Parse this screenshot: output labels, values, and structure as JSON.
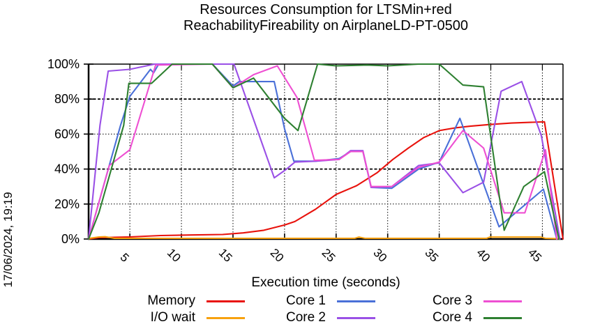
{
  "timestamp": "17/06/2024, 19:19",
  "chart_data": {
    "type": "line",
    "title": "Resources Consumption for LTSMin+red ReachabilityFireability on AirplaneLD-PT-0500",
    "title_lines": [
      "Resources Consumption for LTSMin+red",
      "ReachabilityFireability on AirplaneLD-PT-0500"
    ],
    "xlabel": "Execution time (seconds)",
    "ylabel": "",
    "xlim": [
      1,
      47
    ],
    "ylim": [
      0,
      100
    ],
    "x_ticks": [
      5,
      10,
      15,
      20,
      25,
      30,
      35,
      40,
      45
    ],
    "y_ticks": [
      0,
      20,
      40,
      60,
      80,
      100
    ],
    "y_tick_labels": [
      "0%",
      "20%",
      "40%",
      "60%",
      "80%",
      "100%"
    ],
    "grid": true,
    "legend_position": "bottom",
    "axis_color": "#000000",
    "series": [
      {
        "name": "Memory",
        "color": "#e8120c",
        "points": [
          [
            1,
            0
          ],
          [
            2,
            0.8
          ],
          [
            5,
            1.2
          ],
          [
            8,
            2
          ],
          [
            11,
            2.3
          ],
          [
            14,
            2.6
          ],
          [
            16,
            3.5
          ],
          [
            18,
            5
          ],
          [
            20,
            8
          ],
          [
            21,
            10
          ],
          [
            23,
            17
          ],
          [
            25,
            25.5
          ],
          [
            27,
            30.5
          ],
          [
            29,
            38
          ],
          [
            30.5,
            45.5
          ],
          [
            32,
            52
          ],
          [
            33.5,
            58
          ],
          [
            35,
            62
          ],
          [
            36.5,
            63.5
          ],
          [
            38,
            64.5
          ],
          [
            40,
            65.5
          ],
          [
            42,
            66.3
          ],
          [
            45.2,
            67
          ],
          [
            47,
            0
          ]
        ]
      },
      {
        "name": "I/O wait",
        "color": "#f7a10e",
        "points": [
          [
            1,
            0.3
          ],
          [
            2,
            1.2
          ],
          [
            2.6,
            1.3
          ],
          [
            3.5,
            0.4
          ],
          [
            26.8,
            0.4
          ],
          [
            27.2,
            1.1
          ],
          [
            27.8,
            0.4
          ],
          [
            39.6,
            0.4
          ],
          [
            39.9,
            1.1
          ],
          [
            44.8,
            1.1
          ],
          [
            45.3,
            0.4
          ],
          [
            46.5,
            0.2
          ]
        ]
      },
      {
        "name": "Core 1",
        "color": "#4a70d8",
        "points": [
          [
            1,
            0
          ],
          [
            4.1,
            65
          ],
          [
            5,
            81.5
          ],
          [
            7,
            97
          ],
          [
            7.3,
            95
          ],
          [
            7.8,
            100
          ],
          [
            13,
            100
          ],
          [
            15,
            87.5
          ],
          [
            15.6,
            90
          ],
          [
            19,
            90
          ],
          [
            20,
            63
          ],
          [
            20.9,
            44.5
          ],
          [
            23,
            44.5
          ],
          [
            25.3,
            46
          ],
          [
            26.4,
            50
          ],
          [
            27.6,
            50
          ],
          [
            28.4,
            29.5
          ],
          [
            30.4,
            29
          ],
          [
            33,
            40
          ],
          [
            35,
            44
          ],
          [
            37,
            69
          ],
          [
            40.8,
            7
          ],
          [
            45.1,
            28.5
          ],
          [
            46.4,
            0
          ]
        ]
      },
      {
        "name": "Core 2",
        "color": "#9a50e6",
        "points": [
          [
            1,
            0
          ],
          [
            2.1,
            65
          ],
          [
            2.9,
            96
          ],
          [
            5,
            97
          ],
          [
            7.4,
            100
          ],
          [
            15.1,
            100
          ],
          [
            19,
            35
          ],
          [
            20.2,
            40
          ],
          [
            21,
            44
          ],
          [
            23,
            44.5
          ],
          [
            25.3,
            45.5
          ],
          [
            26.4,
            50.5
          ],
          [
            27.6,
            50.5
          ],
          [
            28.4,
            29.5
          ],
          [
            30.4,
            30
          ],
          [
            33,
            42
          ],
          [
            35,
            43.5
          ],
          [
            37.3,
            26.5
          ],
          [
            39.3,
            32.5
          ],
          [
            41,
            84.5
          ],
          [
            43,
            90
          ],
          [
            44.9,
            59
          ],
          [
            46.7,
            0
          ]
        ]
      },
      {
        "name": "Core 3",
        "color": "#ee4fd2",
        "points": [
          [
            1,
            0
          ],
          [
            3,
            42
          ],
          [
            5,
            51
          ],
          [
            7.5,
            99.5
          ],
          [
            13,
            100
          ],
          [
            15,
            86.5
          ],
          [
            17,
            94
          ],
          [
            19.3,
            99
          ],
          [
            21.2,
            81
          ],
          [
            22.9,
            45
          ],
          [
            25.3,
            45.5
          ],
          [
            26.4,
            50
          ],
          [
            27.6,
            50
          ],
          [
            28.4,
            30
          ],
          [
            30.4,
            30
          ],
          [
            33,
            41
          ],
          [
            35,
            44
          ],
          [
            37.3,
            62
          ],
          [
            39.3,
            52
          ],
          [
            41.3,
            15
          ],
          [
            43.3,
            15
          ],
          [
            45.3,
            51
          ],
          [
            46.4,
            0
          ]
        ]
      },
      {
        "name": "Core 4",
        "color": "#2e8031",
        "points": [
          [
            1,
            0
          ],
          [
            2,
            15
          ],
          [
            4.4,
            65
          ],
          [
            4.9,
            89
          ],
          [
            7.1,
            89
          ],
          [
            9.1,
            100
          ],
          [
            13,
            100
          ],
          [
            15,
            86.5
          ],
          [
            17,
            92
          ],
          [
            20,
            69
          ],
          [
            21.3,
            62
          ],
          [
            23.2,
            100
          ],
          [
            25,
            99
          ],
          [
            28,
            99.5
          ],
          [
            30,
            99
          ],
          [
            33,
            100
          ],
          [
            35,
            100
          ],
          [
            37.3,
            88
          ],
          [
            39.3,
            87
          ],
          [
            41.3,
            5
          ],
          [
            43.2,
            30
          ],
          [
            45.2,
            38.5
          ],
          [
            46.6,
            0
          ]
        ]
      }
    ],
    "legend_columns": [
      [
        "Memory",
        "I/O wait"
      ],
      [
        "Core 1",
        "Core 2"
      ],
      [
        "Core 3",
        "Core 4"
      ]
    ]
  }
}
